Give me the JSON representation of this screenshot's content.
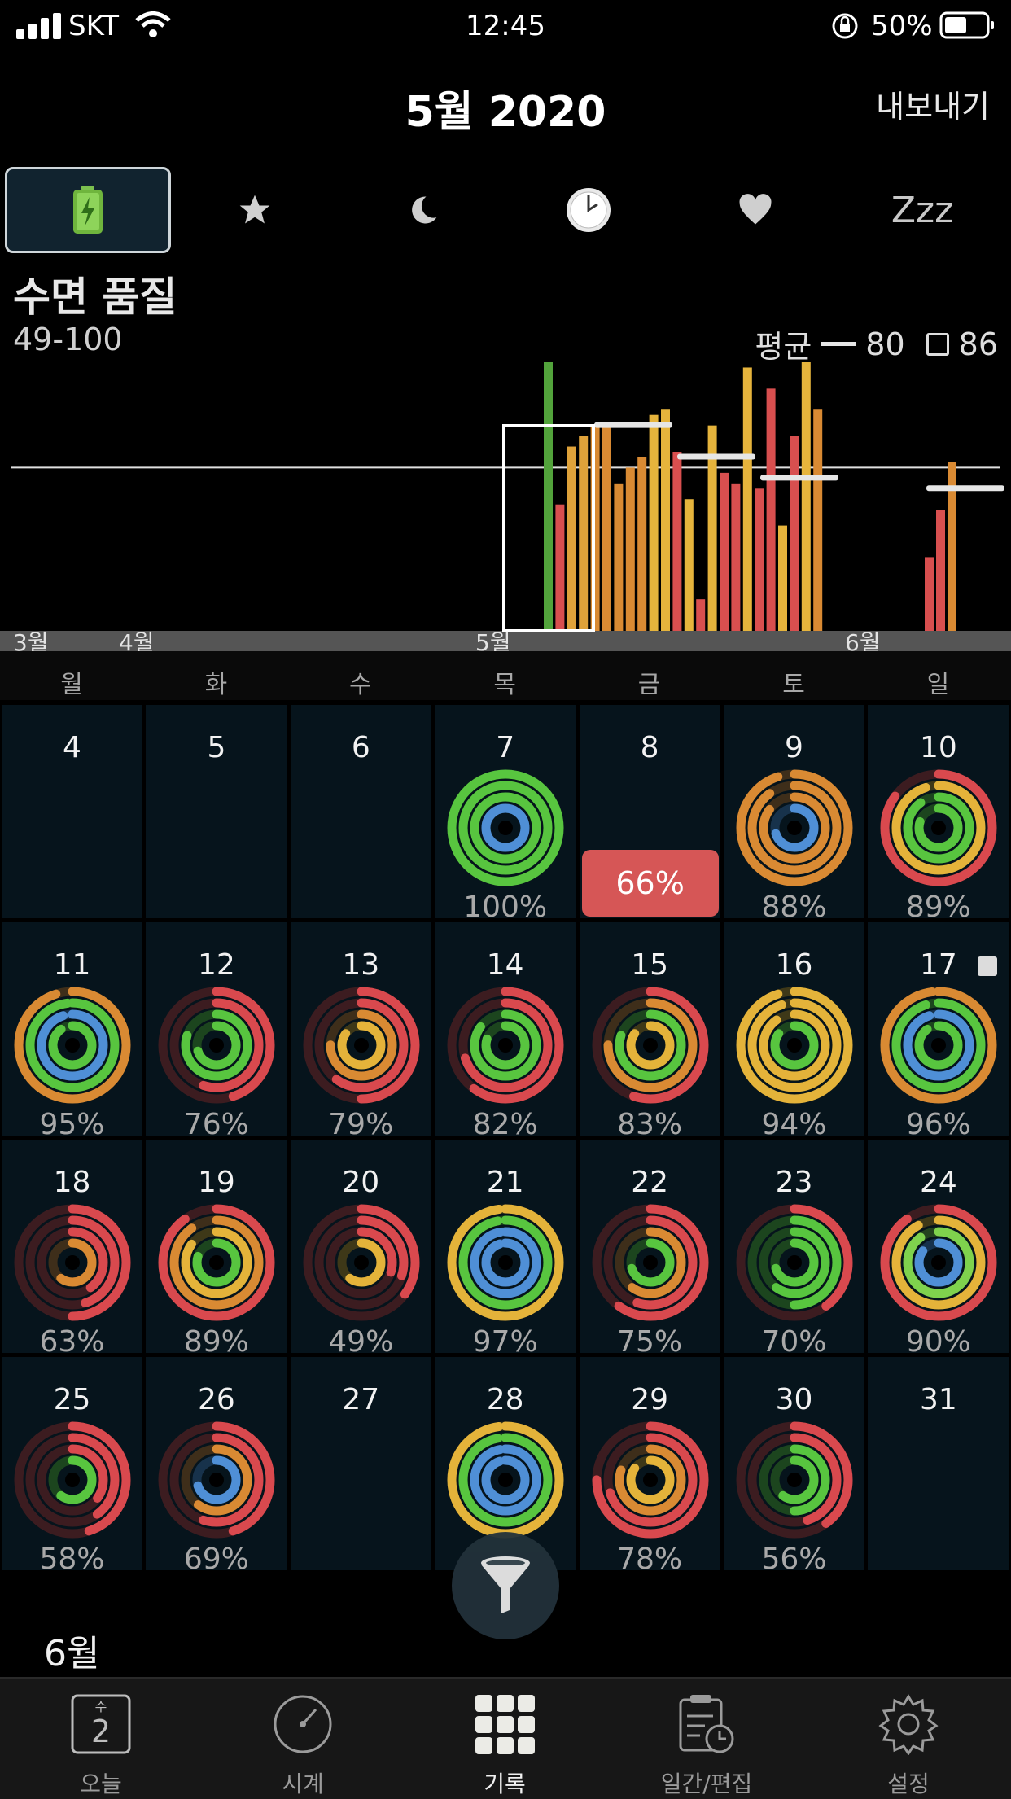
{
  "status": {
    "carrier": "SKT",
    "time": "12:45",
    "battery": "50%"
  },
  "header": {
    "title": "5월 2020",
    "export_label": "내보내기"
  },
  "tabs": [
    {
      "icon": "battery-icon",
      "label": ""
    },
    {
      "icon": "star-icon",
      "label": ""
    },
    {
      "icon": "moon-icon",
      "label": ""
    },
    {
      "icon": "clock-icon",
      "label": ""
    },
    {
      "icon": "heart-icon",
      "label": ""
    },
    {
      "icon": "zzz-icon",
      "label": "Zzz"
    }
  ],
  "metric": {
    "title": "수면 품질",
    "range": "49-100",
    "avg_label": "평균",
    "avg_value": "80",
    "box_value": "86"
  },
  "chart_data": {
    "type": "bar",
    "xlabels": [
      "3월",
      "4월",
      "5월",
      "6월"
    ],
    "average_line": 80,
    "ylim": [
      49,
      100
    ],
    "values": [
      100,
      73,
      84,
      86,
      88,
      88,
      77,
      80,
      82,
      90,
      91,
      83,
      74,
      55,
      88,
      79,
      77,
      99,
      76,
      95,
      69,
      86,
      100,
      91,
      63,
      72,
      81
    ],
    "colors": [
      "#52a33b",
      "#d84f4f",
      "#dfa23a",
      "#dfa23a",
      "#d98a33",
      "#d98a33",
      "#d98a33",
      "#d98a33",
      "#d98a33",
      "#e6b43c",
      "#e6b43c",
      "#d84f4f",
      "#e6b43c",
      "#d84f4f",
      "#e6b43c",
      "#d84f4f",
      "#d84f4f",
      "#e6b43c",
      "#d84f4f",
      "#d84f4f",
      "#e6b43c",
      "#d84f4f",
      "#e6b43c",
      "#d98a33",
      "#d84f4f",
      "#d84f4f",
      "#d98a33"
    ]
  },
  "weekdays": [
    "월",
    "화",
    "수",
    "목",
    "금",
    "토",
    "일"
  ],
  "days": [
    {
      "d": "4",
      "pct": ""
    },
    {
      "d": "5",
      "pct": ""
    },
    {
      "d": "6",
      "pct": ""
    },
    {
      "d": "7",
      "pct": "100%"
    },
    {
      "d": "8",
      "pct": "66%",
      "badge": true
    },
    {
      "d": "9",
      "pct": "88%"
    },
    {
      "d": "10",
      "pct": "89%"
    },
    {
      "d": "11",
      "pct": "95%"
    },
    {
      "d": "12",
      "pct": "76%"
    },
    {
      "d": "13",
      "pct": "79%"
    },
    {
      "d": "14",
      "pct": "82%"
    },
    {
      "d": "15",
      "pct": "83%"
    },
    {
      "d": "16",
      "pct": "94%"
    },
    {
      "d": "17",
      "pct": "96%",
      "square": true
    },
    {
      "d": "18",
      "pct": "63%"
    },
    {
      "d": "19",
      "pct": "89%"
    },
    {
      "d": "20",
      "pct": "49%"
    },
    {
      "d": "21",
      "pct": "97%"
    },
    {
      "d": "22",
      "pct": "75%"
    },
    {
      "d": "23",
      "pct": "70%"
    },
    {
      "d": "24",
      "pct": "90%"
    },
    {
      "d": "25",
      "pct": "58%"
    },
    {
      "d": "26",
      "pct": "69%"
    },
    {
      "d": "27",
      "pct": ""
    },
    {
      "d": "28",
      "pct": ""
    },
    {
      "d": "29",
      "pct": "78%"
    },
    {
      "d": "30",
      "pct": "56%"
    },
    {
      "d": "31",
      "pct": ""
    }
  ],
  "next_month": "6월",
  "tabbar": [
    {
      "label": "오늘",
      "icon": "calendar-today-icon",
      "day": "2",
      "weekday": "수"
    },
    {
      "label": "시계",
      "icon": "gauge-icon"
    },
    {
      "label": "기록",
      "icon": "grid-icon"
    },
    {
      "label": "일간/편집",
      "icon": "clipboard-clock-icon"
    },
    {
      "label": "설정",
      "icon": "gear-icon"
    }
  ]
}
